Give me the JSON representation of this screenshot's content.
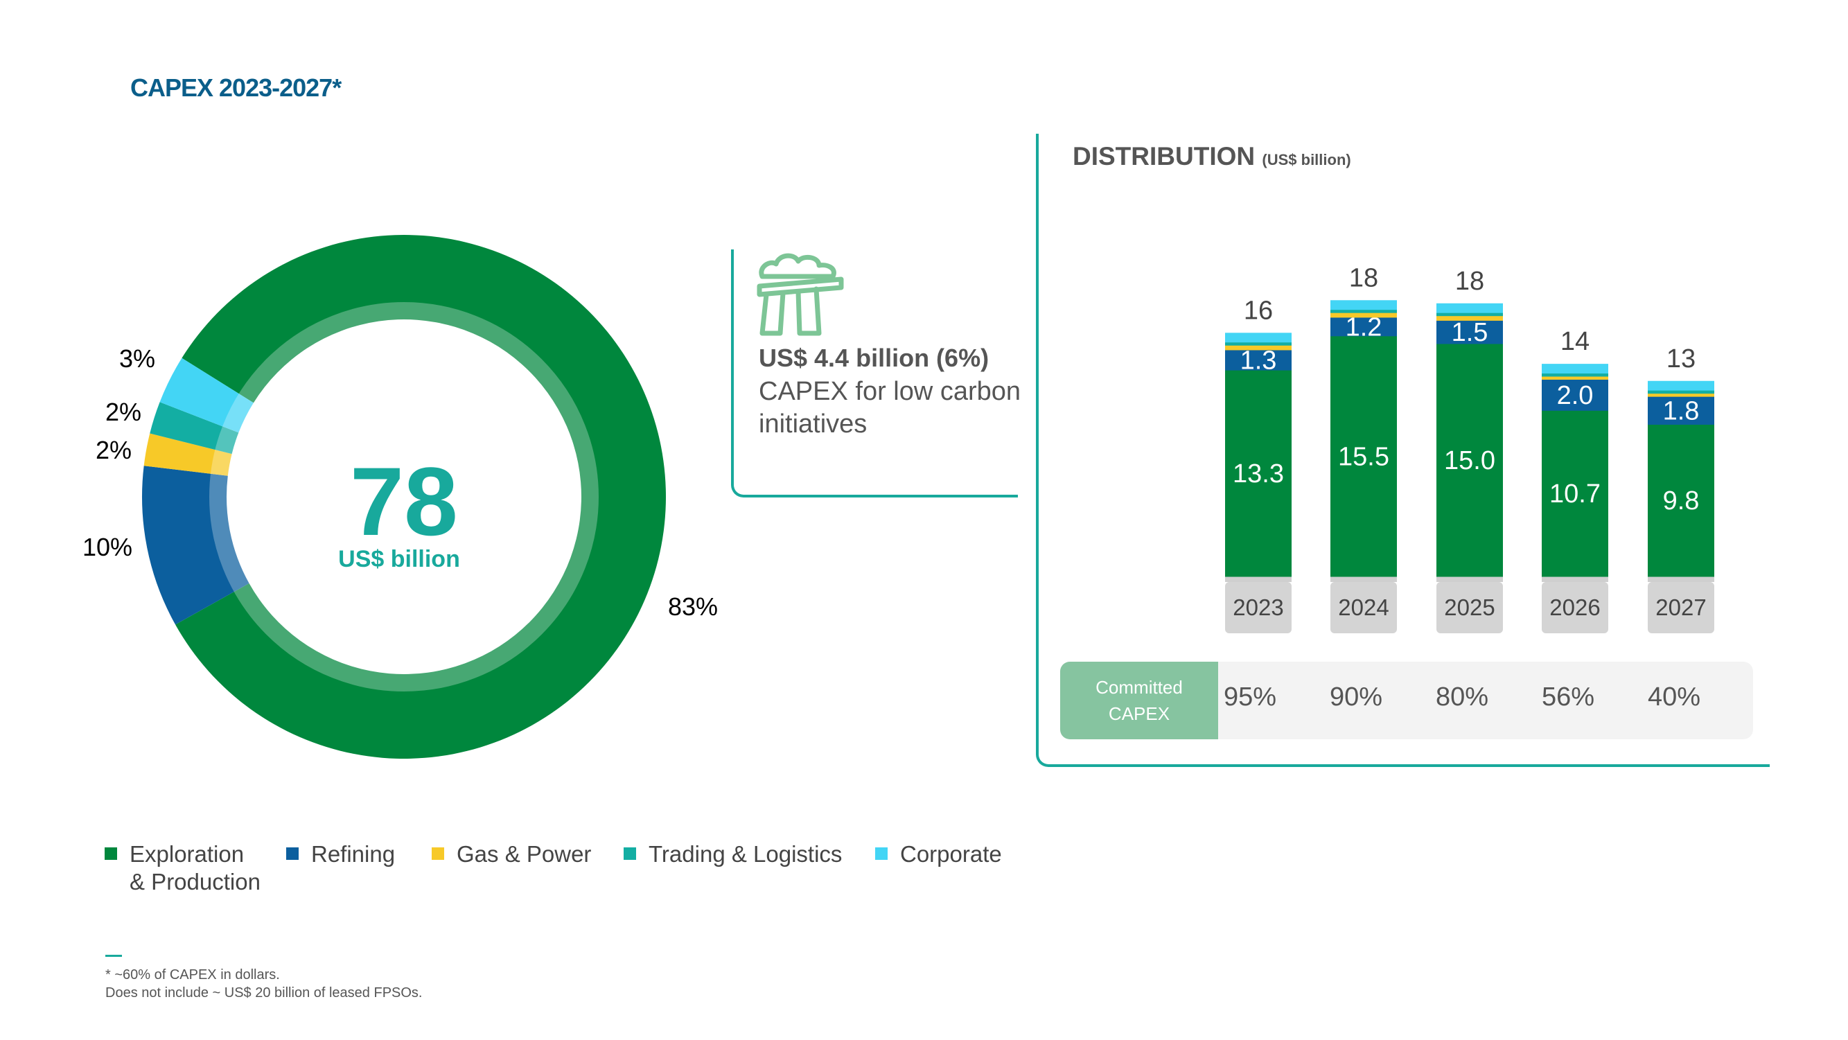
{
  "title": "CAPEX 2023-2027*",
  "colors": {
    "exploration": "#00873d",
    "refining": "#0c5f9e",
    "gas_power": "#f7c928",
    "trading": "#13aea3",
    "corporate": "#43d5f5",
    "accent": "#18a99c",
    "committed": "#86c4a0"
  },
  "donut": {
    "center_value": "78",
    "center_unit": "US$ billion",
    "slices": [
      {
        "name": "Exploration & Production",
        "value": 83,
        "label": "83%",
        "color": "#00873d"
      },
      {
        "name": "Refining",
        "value": 10,
        "label": "10%",
        "color": "#0c5f9e"
      },
      {
        "name": "Gas & Power",
        "value": 2,
        "label": "2%",
        "color": "#f7c928"
      },
      {
        "name": "Trading & Logistics",
        "value": 2,
        "label": "2%",
        "color": "#13aea3"
      },
      {
        "name": "Corporate",
        "value": 3,
        "label": "3%",
        "color": "#43d5f5"
      }
    ]
  },
  "low_carbon": {
    "icon": "factory-smoke-icon",
    "headline": "US$ 4.4 billion (6%)",
    "text": "CAPEX for low carbon initiatives"
  },
  "distribution": {
    "title": "DISTRIBUTION",
    "unit": "(US$ billion)"
  },
  "chart_data": [
    {
      "type": "pie",
      "title": "CAPEX 2023-2027*",
      "center_label": "78 US$ billion",
      "categories": [
        "Exploration & Production",
        "Refining",
        "Gas & Power",
        "Trading & Logistics",
        "Corporate"
      ],
      "values": [
        83,
        10,
        2,
        2,
        3
      ],
      "unit": "%"
    },
    {
      "type": "bar",
      "stacked": true,
      "title": "DISTRIBUTION (US$ billion)",
      "categories": [
        "2023",
        "2024",
        "2025",
        "2026",
        "2027"
      ],
      "totals": [
        "16",
        "18",
        "18",
        "14",
        "13"
      ],
      "series": [
        {
          "name": "Exploration & Production",
          "values": [
            13.3,
            15.5,
            15.0,
            10.7,
            9.8
          ],
          "labels": [
            "13.3",
            "15.5",
            "15.0",
            "10.7",
            "9.8"
          ]
        },
        {
          "name": "Refining",
          "values": [
            1.3,
            1.2,
            1.5,
            2.0,
            1.8
          ],
          "labels": [
            "1.3",
            "1.2",
            "1.5",
            "2.0",
            "1.8"
          ]
        },
        {
          "name": "Gas & Power",
          "values": [
            0.3,
            0.3,
            0.3,
            0.2,
            0.2
          ]
        },
        {
          "name": "Trading & Logistics",
          "values": [
            0.2,
            0.2,
            0.2,
            0.2,
            0.2
          ]
        },
        {
          "name": "Corporate",
          "values": [
            0.6,
            0.6,
            0.6,
            0.6,
            0.6
          ]
        }
      ],
      "committed_capex_label": "Committed CAPEX",
      "committed_capex": [
        "95%",
        "90%",
        "80%",
        "56%",
        "40%"
      ]
    }
  ],
  "legend": [
    {
      "label": "Exploration\n& Production",
      "color": "#00873d"
    },
    {
      "label": "Refining",
      "color": "#0c5f9e"
    },
    {
      "label": "Gas & Power",
      "color": "#f7c928"
    },
    {
      "label": "Trading & Logistics",
      "color": "#13aea3"
    },
    {
      "label": "Corporate",
      "color": "#43d5f5"
    }
  ],
  "footnotes": {
    "line1": "* ~60% of CAPEX in dollars.",
    "line2": "Does not include ~ US$ 20 billion of leased FPSOs."
  }
}
